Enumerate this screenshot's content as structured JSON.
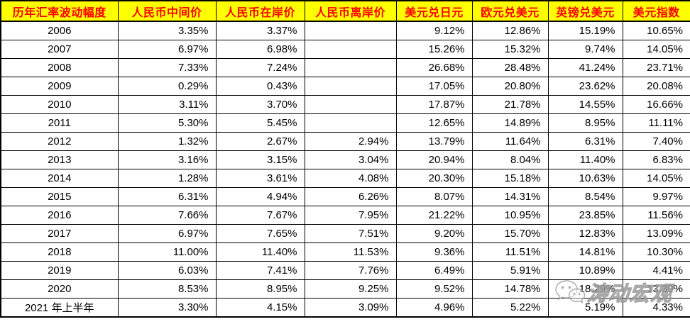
{
  "chart_data": {
    "type": "table",
    "columns": [
      "历年汇率波动幅度",
      "人民币中间价",
      "人民币在岸价",
      "人民币离岸价",
      "美元兑日元",
      "欧元兑美元",
      "英镑兑美元",
      "美元指数"
    ],
    "rows": [
      {
        "year": "2006",
        "cells": [
          "3.35%",
          "3.37%",
          "",
          "9.12%",
          "12.86%",
          "15.19%",
          "10.65%"
        ]
      },
      {
        "year": "2007",
        "cells": [
          "6.97%",
          "6.98%",
          "",
          "15.26%",
          "15.32%",
          "9.74%",
          "14.05%"
        ]
      },
      {
        "year": "2008",
        "cells": [
          "7.33%",
          "7.24%",
          "",
          "26.68%",
          "28.48%",
          "41.24%",
          "23.71%"
        ]
      },
      {
        "year": "2009",
        "cells": [
          "0.29%",
          "0.43%",
          "",
          "17.05%",
          "20.80%",
          "23.62%",
          "20.08%"
        ]
      },
      {
        "year": "2010",
        "cells": [
          "3.11%",
          "3.70%",
          "",
          "17.87%",
          "21.78%",
          "14.55%",
          "16.66%"
        ]
      },
      {
        "year": "2011",
        "cells": [
          "5.30%",
          "5.45%",
          "",
          "12.65%",
          "14.89%",
          "8.95%",
          "11.11%"
        ]
      },
      {
        "year": "2012",
        "cells": [
          "1.32%",
          "2.67%",
          "2.94%",
          "13.79%",
          "11.64%",
          "6.31%",
          "7.40%"
        ]
      },
      {
        "year": "2013",
        "cells": [
          "3.16%",
          "3.15%",
          "3.04%",
          "20.94%",
          "8.04%",
          "11.40%",
          "6.83%"
        ]
      },
      {
        "year": "2014",
        "cells": [
          "1.28%",
          "3.61%",
          "4.08%",
          "20.30%",
          "15.18%",
          "10.63%",
          "14.05%"
        ]
      },
      {
        "year": "2015",
        "cells": [
          "6.31%",
          "4.94%",
          "6.26%",
          "8.07%",
          "14.31%",
          "8.54%",
          "9.97%"
        ]
      },
      {
        "year": "2016",
        "cells": [
          "7.66%",
          "7.67%",
          "7.95%",
          "21.22%",
          "10.95%",
          "23.85%",
          "11.56%"
        ]
      },
      {
        "year": "2017",
        "cells": [
          "6.97%",
          "7.65%",
          "7.51%",
          "9.20%",
          "15.70%",
          "12.83%",
          "13.09%"
        ]
      },
      {
        "year": "2018",
        "cells": [
          "11.00%",
          "11.40%",
          "11.53%",
          "9.36%",
          "11.51%",
          "14.81%",
          "10.30%"
        ]
      },
      {
        "year": "2019",
        "cells": [
          "6.03%",
          "7.41%",
          "7.76%",
          "6.49%",
          "5.91%",
          "10.89%",
          "4.41%"
        ]
      },
      {
        "year": "2020",
        "cells": [
          "8.53%",
          "8.95%",
          "9.25%",
          "9.52%",
          "14.78%",
          "18.29%",
          "13.39%"
        ]
      },
      {
        "year": "2021 年上半年",
        "cells": [
          "3.30%",
          "4.15%",
          "3.09%",
          "4.96%",
          "5.22%",
          "5.19%",
          "4.33%"
        ]
      }
    ]
  },
  "watermark": {
    "text": "涛动宏观",
    "icon": "wechat-icon"
  },
  "colors": {
    "header_bg": "#FFFF00",
    "header_text": "#FF0000",
    "border": "#000000",
    "body_text": "#000000",
    "body_bg": "#FFFFFF"
  }
}
